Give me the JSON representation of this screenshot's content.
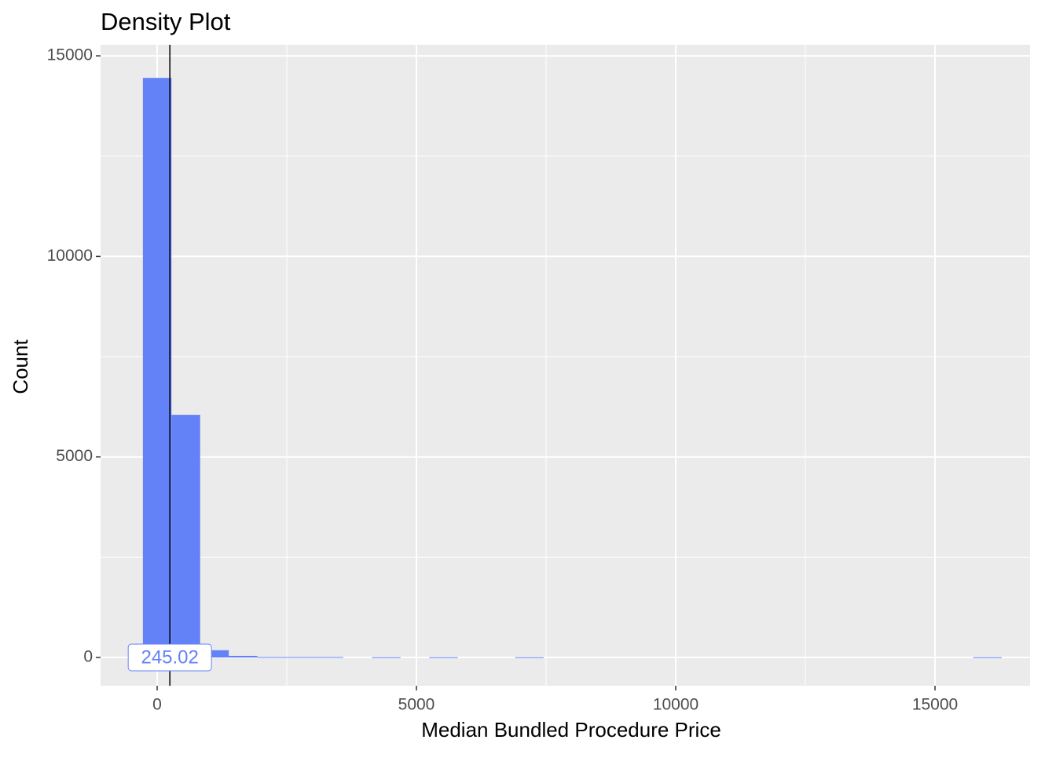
{
  "chart_data": {
    "type": "histogram",
    "title": "Density Plot",
    "x_label": "Median Bundled Procedure Price",
    "y_label": "Count",
    "bins": [
      -275,
      277,
      829,
      1381,
      1933,
      2485,
      3037,
      3589,
      4141,
      4693,
      5245,
      5797,
      6349,
      6901,
      7453,
      8005,
      8557,
      9109,
      9661,
      10213,
      10765,
      11317,
      11869,
      12421,
      12973,
      13525,
      14077,
      14629,
      15181,
      15733,
      16285
    ],
    "values": [
      14450,
      6050,
      180,
      40,
      10,
      10,
      10,
      0,
      5,
      0,
      5,
      0,
      0,
      5,
      0,
      0,
      0,
      0,
      0,
      0,
      0,
      0,
      0,
      0,
      0,
      0,
      0,
      0,
      0,
      5
    ],
    "color": "#6382f8",
    "vline": 245.02,
    "xlim": [
      -1091,
      16833
    ],
    "ylim": [
      -705,
      15276
    ],
    "xticks": [
      0,
      5000,
      10000,
      15000
    ],
    "yticks": [
      0,
      5000,
      10000,
      15000
    ],
    "grid": true
  }
}
